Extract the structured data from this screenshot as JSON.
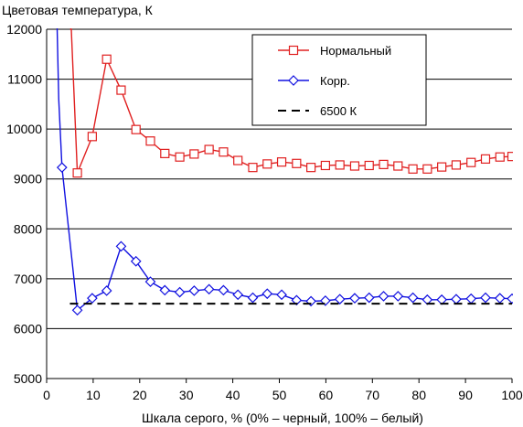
{
  "chart_data": {
    "type": "line",
    "title": "",
    "ylabel": "Цветовая температура, К",
    "xlabel": "Шкала серого, % (0% – черный, 100% – белый)",
    "xlim": [
      0,
      100
    ],
    "ylim": [
      5000,
      12000
    ],
    "xticks": [
      0,
      10,
      20,
      30,
      40,
      50,
      60,
      70,
      80,
      90,
      100
    ],
    "yticks": [
      5000,
      6000,
      7000,
      8000,
      9000,
      10000,
      11000,
      12000
    ],
    "grid": "horizontal",
    "legend": "top-right",
    "series": [
      {
        "name": "Нормальный",
        "color": "#e02020",
        "marker": "square",
        "x": [
          4.2,
          6.6,
          9.8,
          12.9,
          16.0,
          19.2,
          22.3,
          25.4,
          28.6,
          31.7,
          34.9,
          38.0,
          41.1,
          44.3,
          47.4,
          50.5,
          53.7,
          56.8,
          59.9,
          63.0,
          66.2,
          69.3,
          72.4,
          75.5,
          78.7,
          81.8,
          84.9,
          88.0,
          91.2,
          94.3,
          97.4,
          100.0
        ],
        "y": [
          12000,
          9120,
          9850,
          11400,
          10780,
          9990,
          9760,
          9510,
          9440,
          9500,
          9590,
          9540,
          9370,
          9230,
          9300,
          9340,
          9310,
          9230,
          9270,
          9280,
          9260,
          9270,
          9290,
          9260,
          9200,
          9200,
          9240,
          9280,
          9330,
          9400,
          9440,
          9450
        ]
      },
      {
        "name": "Корр.",
        "color": "#1010e0",
        "marker": "diamond",
        "x": [
          3.3,
          6.6,
          9.8,
          12.9,
          16.0,
          19.2,
          22.3,
          25.4,
          28.6,
          31.7,
          34.9,
          38.0,
          41.1,
          44.3,
          47.4,
          50.5,
          53.7,
          56.8,
          59.9,
          63.0,
          66.2,
          69.3,
          72.4,
          75.5,
          78.7,
          81.8,
          84.9,
          88.0,
          91.2,
          94.3,
          97.4,
          100.0
        ],
        "y": [
          9230,
          6370,
          6610,
          6760,
          7650,
          7350,
          6940,
          6770,
          6730,
          6760,
          6790,
          6770,
          6680,
          6620,
          6700,
          6680,
          6570,
          6550,
          6560,
          6590,
          6610,
          6620,
          6650,
          6650,
          6620,
          6580,
          6580,
          6590,
          6600,
          6620,
          6610,
          6600
        ]
      },
      {
        "name": "6500 К",
        "color": "#000000",
        "marker": "none",
        "dash": true,
        "x": [
          5,
          100
        ],
        "y": [
          6500,
          6500
        ]
      }
    ]
  }
}
